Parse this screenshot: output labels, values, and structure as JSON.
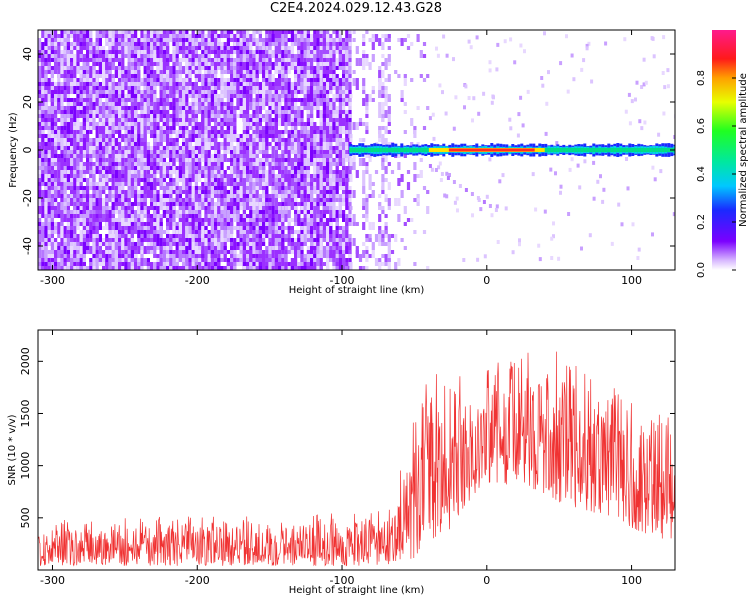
{
  "figure_title": "C2E4.2024.029.12.43.G28",
  "colors": {
    "snr_line": "#f03232",
    "spectro_low": "#9b30ff",
    "spectro_mid": "#00e080",
    "spectro_high": "#ff2a2a"
  },
  "chart_data": [
    {
      "type": "heatmap",
      "title": "",
      "xlabel": "Height of straight line (km)",
      "ylabel": "Frequency (Hz)",
      "xlim": [
        -310,
        130
      ],
      "ylim": [
        -50,
        50
      ],
      "xticks": [
        -300,
        -200,
        -100,
        0,
        100
      ],
      "yticks": [
        -40,
        -20,
        0,
        20,
        40
      ],
      "grid": false,
      "colorbar": {
        "label": "Normalized spectral amplitude",
        "range": [
          0.0,
          1.0
        ],
        "ticks": [
          0.0,
          0.2,
          0.4,
          0.6,
          0.8
        ],
        "colormap": "rainbow (purple-blue-cyan-green-yellow-red-magenta)"
      },
      "features": {
        "broadband_noise_region_x": [
          -310,
          -95
        ],
        "sparse_noise_region_x": [
          -95,
          -40
        ],
        "carrier_line_x": [
          -95,
          130
        ],
        "carrier_frequency": 0,
        "carrier_peak_amplitude": 1.0,
        "carrier_peak_x": [
          -40,
          40
        ]
      }
    },
    {
      "type": "line",
      "title": "",
      "xlabel": "Height of straight line (km)",
      "ylabel": "SNR (10 * v/v)",
      "xlim": [
        -310,
        130
      ],
      "ylim": [
        0,
        2300
      ],
      "xticks": [
        -300,
        -200,
        -100,
        0,
        100
      ],
      "yticks": [
        500,
        1000,
        1500,
        2000
      ],
      "grid": false,
      "series": [
        {
          "x": [
            -310,
            -250,
            -200,
            -150,
            -100,
            -70,
            -60,
            -50,
            -40,
            -30,
            -20,
            -10,
            0,
            10,
            20,
            30,
            40,
            60,
            80,
            100,
            120,
            130
          ],
          "y_low": [
            40,
            40,
            40,
            40,
            40,
            40,
            100,
            60,
            300,
            300,
            500,
            700,
            800,
            800,
            850,
            800,
            700,
            600,
            500,
            400,
            300,
            300
          ],
          "y_high": [
            380,
            420,
            420,
            430,
            450,
            500,
            800,
            1200,
            1700,
            1500,
            1600,
            1650,
            1750,
            1900,
            2000,
            2100,
            1900,
            1700,
            1550,
            1400,
            1250,
            1250
          ]
        }
      ]
    }
  ]
}
